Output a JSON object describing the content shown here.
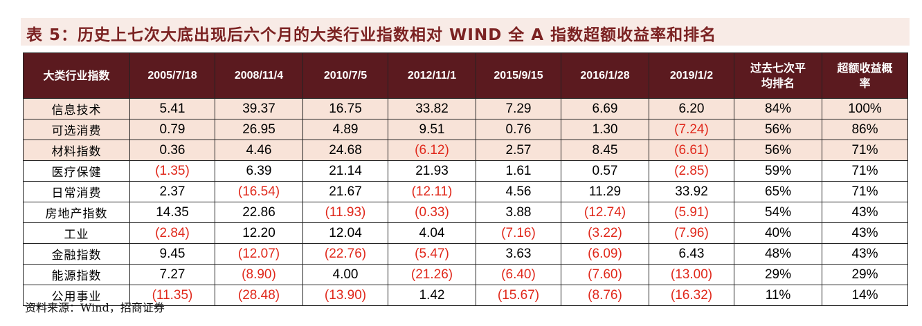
{
  "title": "表 5：历史上七次大底出现后六个月的大类行业指数相对 WIND 全 A 指数超额收益率和排名",
  "header": {
    "first_col": "大类行业指数",
    "dates": [
      "2005/7/18",
      "2008/11/4",
      "2010/7/5",
      "2012/11/1",
      "2015/9/15",
      "2016/1/28",
      "2019/1/2"
    ],
    "avg_rank_line1": "过去七次平",
    "avg_rank_line2": "均排名",
    "excess_prob_line1": "超额收益概",
    "excess_prob_line2": "率"
  },
  "rows": [
    {
      "name": "信息技术",
      "highlight": true,
      "values": [
        "5.41",
        "39.37",
        "16.75",
        "33.82",
        "7.29",
        "6.69",
        "6.20"
      ],
      "avg_rank": "84%",
      "prob": "100%"
    },
    {
      "name": "可选消费",
      "highlight": true,
      "values": [
        "0.79",
        "26.95",
        "4.89",
        "9.51",
        "0.76",
        "1.30",
        "(7.24)"
      ],
      "avg_rank": "56%",
      "prob": "86%"
    },
    {
      "name": "材料指数",
      "highlight": true,
      "values": [
        "0.36",
        "4.46",
        "24.68",
        "(6.12)",
        "2.57",
        "8.45",
        "(6.61)"
      ],
      "avg_rank": "56%",
      "prob": "71%"
    },
    {
      "name": "医疗保健",
      "highlight": false,
      "values": [
        "(1.35)",
        "6.39",
        "21.14",
        "21.93",
        "1.61",
        "0.57",
        "(2.85)"
      ],
      "avg_rank": "59%",
      "prob": "71%"
    },
    {
      "name": "日常消费",
      "highlight": false,
      "values": [
        "2.37",
        "(16.54)",
        "21.67",
        "(12.11)",
        "4.56",
        "11.29",
        "33.92"
      ],
      "avg_rank": "65%",
      "prob": "71%"
    },
    {
      "name": "房地产指数",
      "highlight": false,
      "values": [
        "14.35",
        "22.86",
        "(11.93)",
        "(0.33)",
        "3.88",
        "(12.74)",
        "(5.91)"
      ],
      "avg_rank": "54%",
      "prob": "43%"
    },
    {
      "name": "工业",
      "highlight": false,
      "values": [
        "(2.84)",
        "12.20",
        "12.04",
        "4.04",
        "(7.16)",
        "(3.22)",
        "(7.96)"
      ],
      "avg_rank": "40%",
      "prob": "43%"
    },
    {
      "name": "金融指数",
      "highlight": false,
      "values": [
        "9.45",
        "(12.07)",
        "(22.76)",
        "(5.47)",
        "3.63",
        "(6.09)",
        "6.43"
      ],
      "avg_rank": "48%",
      "prob": "43%"
    },
    {
      "name": "能源指数",
      "highlight": false,
      "values": [
        "7.27",
        "(8.90)",
        "4.00",
        "(21.26)",
        "(6.40)",
        "(7.60)",
        "(13.00)"
      ],
      "avg_rank": "29%",
      "prob": "29%"
    },
    {
      "name": "公用事业",
      "highlight": false,
      "values": [
        "(11.35)",
        "(28.48)",
        "(13.90)",
        "1.42",
        "(15.67)",
        "(8.76)",
        "(16.32)"
      ],
      "avg_rank": "11%",
      "prob": "14%"
    }
  ],
  "source": "资料来源：Wind，招商证券",
  "colors": {
    "header_bg": "#5b1a1f",
    "highlight_bg": "#f8e3d8",
    "negative": "#e0281b",
    "title": "#7b2222"
  }
}
